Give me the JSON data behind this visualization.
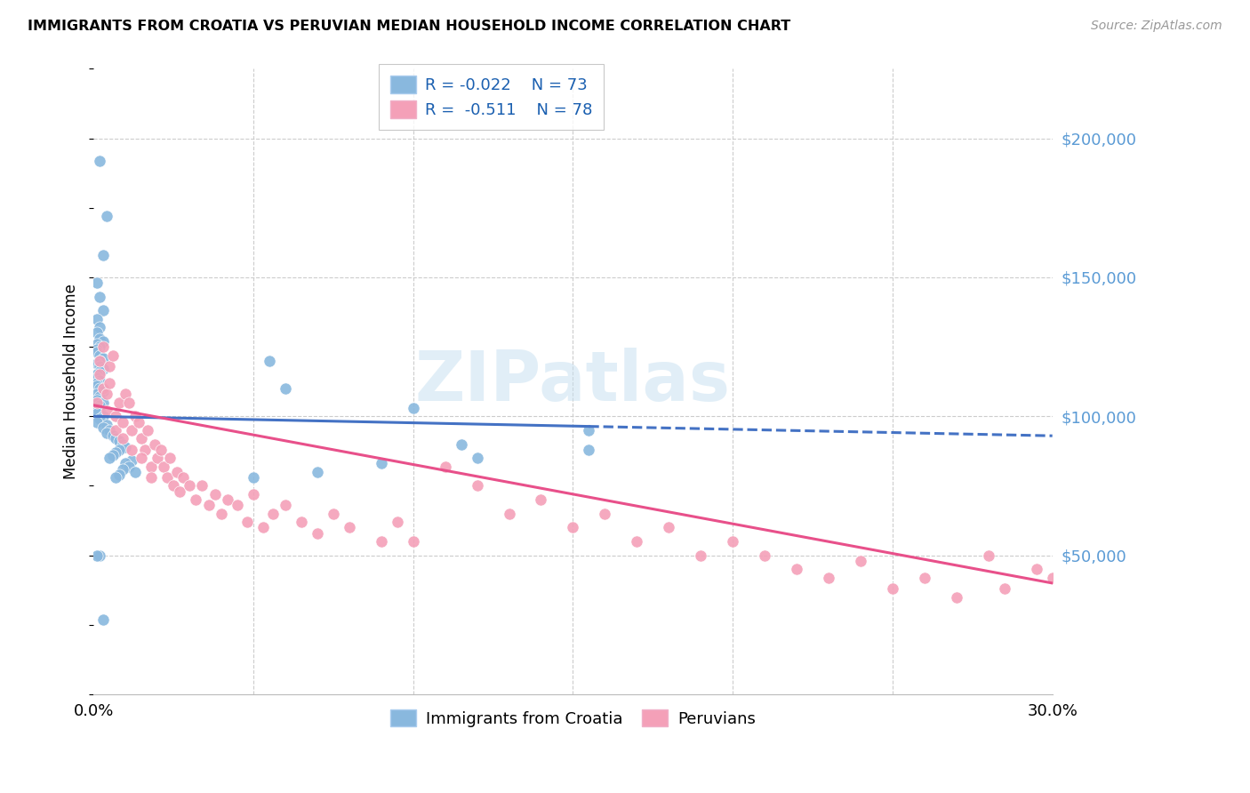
{
  "title": "IMMIGRANTS FROM CROATIA VS PERUVIAN MEDIAN HOUSEHOLD INCOME CORRELATION CHART",
  "source": "Source: ZipAtlas.com",
  "ylabel": "Median Household Income",
  "legend_r1": "R = -0.022",
  "legend_n1": "N = 73",
  "legend_r2": "R =  -0.511",
  "legend_n2": "N = 78",
  "legend_label1": "Immigrants from Croatia",
  "legend_label2": "Peruvians",
  "ytick_values": [
    50000,
    100000,
    150000,
    200000
  ],
  "xlim": [
    0.0,
    0.3
  ],
  "ylim": [
    0,
    225000
  ],
  "blue_color": "#89b8de",
  "pink_color": "#f4a0b8",
  "blue_line_color": "#4472c4",
  "pink_line_color": "#e8508a",
  "blue_line_solid_end": 0.155,
  "blue_line_x0": 0.0,
  "blue_line_y0": 100000,
  "blue_line_x1": 0.3,
  "blue_line_y1": 93000,
  "pink_line_x0": 0.0,
  "pink_line_y0": 104000,
  "pink_line_x1": 0.3,
  "pink_line_y1": 40000,
  "watermark_text": "ZIPatlas",
  "watermark_color": "#c5dff0",
  "grid_color": "#cccccc",
  "blue_x": [
    0.002,
    0.004,
    0.003,
    0.001,
    0.002,
    0.003,
    0.001,
    0.002,
    0.001,
    0.002,
    0.003,
    0.001,
    0.002,
    0.001,
    0.001,
    0.002,
    0.003,
    0.002,
    0.001,
    0.002,
    0.003,
    0.002,
    0.001,
    0.001,
    0.002,
    0.001,
    0.001,
    0.002,
    0.003,
    0.001,
    0.002,
    0.001,
    0.003,
    0.002,
    0.001,
    0.002,
    0.001,
    0.003,
    0.002,
    0.001,
    0.004,
    0.003,
    0.005,
    0.004,
    0.006,
    0.007,
    0.008,
    0.009,
    0.01,
    0.008,
    0.007,
    0.006,
    0.005,
    0.012,
    0.01,
    0.011,
    0.009,
    0.013,
    0.008,
    0.007,
    0.055,
    0.06,
    0.1,
    0.115,
    0.155,
    0.155,
    0.12,
    0.09,
    0.07,
    0.05,
    0.002,
    0.001,
    0.003
  ],
  "blue_y": [
    192000,
    172000,
    158000,
    148000,
    143000,
    138000,
    135000,
    132000,
    130000,
    128000,
    127000,
    126000,
    125000,
    124000,
    123000,
    122000,
    121000,
    120000,
    119000,
    118000,
    117000,
    116000,
    115000,
    114000,
    113000,
    112000,
    111000,
    110000,
    109000,
    108000,
    107000,
    106000,
    105000,
    104000,
    103000,
    102000,
    101000,
    100000,
    99000,
    98000,
    97000,
    96000,
    95000,
    94000,
    93000,
    92000,
    91000,
    90000,
    89000,
    88000,
    87000,
    86000,
    85000,
    84000,
    83000,
    82000,
    81000,
    80000,
    79000,
    78000,
    120000,
    110000,
    103000,
    90000,
    95000,
    88000,
    85000,
    83000,
    80000,
    78000,
    50000,
    50000,
    27000
  ],
  "pink_x": [
    0.001,
    0.002,
    0.003,
    0.002,
    0.003,
    0.004,
    0.005,
    0.004,
    0.005,
    0.006,
    0.007,
    0.008,
    0.007,
    0.009,
    0.01,
    0.009,
    0.011,
    0.012,
    0.013,
    0.012,
    0.014,
    0.015,
    0.016,
    0.015,
    0.017,
    0.018,
    0.019,
    0.02,
    0.018,
    0.021,
    0.022,
    0.023,
    0.024,
    0.025,
    0.026,
    0.027,
    0.028,
    0.03,
    0.032,
    0.034,
    0.036,
    0.038,
    0.04,
    0.042,
    0.045,
    0.048,
    0.05,
    0.053,
    0.056,
    0.06,
    0.065,
    0.07,
    0.075,
    0.08,
    0.09,
    0.095,
    0.1,
    0.11,
    0.12,
    0.13,
    0.14,
    0.15,
    0.16,
    0.17,
    0.18,
    0.19,
    0.2,
    0.21,
    0.22,
    0.23,
    0.24,
    0.25,
    0.26,
    0.27,
    0.28,
    0.285,
    0.295,
    0.3
  ],
  "pink_y": [
    105000,
    115000,
    110000,
    120000,
    125000,
    108000,
    118000,
    102000,
    112000,
    122000,
    95000,
    105000,
    100000,
    98000,
    108000,
    92000,
    105000,
    95000,
    100000,
    88000,
    98000,
    92000,
    88000,
    85000,
    95000,
    82000,
    90000,
    85000,
    78000,
    88000,
    82000,
    78000,
    85000,
    75000,
    80000,
    73000,
    78000,
    75000,
    70000,
    75000,
    68000,
    72000,
    65000,
    70000,
    68000,
    62000,
    72000,
    60000,
    65000,
    68000,
    62000,
    58000,
    65000,
    60000,
    55000,
    62000,
    55000,
    82000,
    75000,
    65000,
    70000,
    60000,
    65000,
    55000,
    60000,
    50000,
    55000,
    50000,
    45000,
    42000,
    48000,
    38000,
    42000,
    35000,
    50000,
    38000,
    45000,
    42000
  ]
}
